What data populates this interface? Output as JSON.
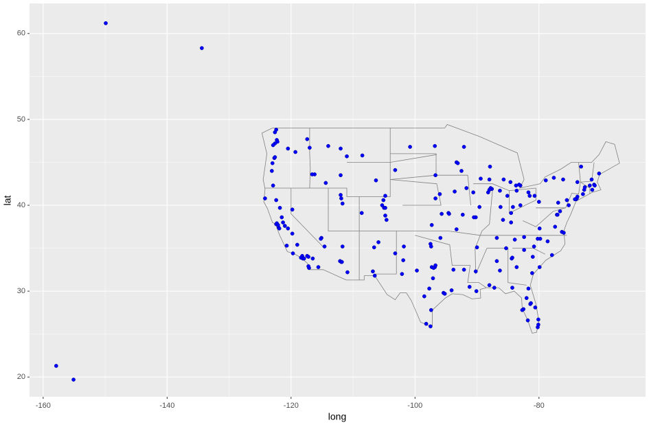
{
  "chart_data": {
    "type": "scatter",
    "x_label": "long",
    "y_label": "lat",
    "color": "#0000ff",
    "grid": true,
    "xlim": [
      -162.2,
      -62.8
    ],
    "ylim": [
      17.7,
      63.5
    ],
    "xticks": [
      -160,
      -140,
      -120,
      -100,
      -80
    ],
    "yticks": [
      20,
      30,
      40,
      50,
      60
    ],
    "x": [
      -149.9,
      -134.4,
      -157.9,
      -155.1,
      -122.3,
      -122.2,
      -122.6,
      -122.4,
      -122.6,
      -122.9,
      -122.7,
      -122.6,
      -123.0,
      -123.1,
      -122.9,
      -117.4,
      -117.0,
      -119.3,
      -120.5,
      -116.2,
      -116.6,
      -112.0,
      -114.4,
      -111.9,
      -111.7,
      -112.0,
      -119.8,
      -115.1,
      -115.2,
      -114.6,
      -122.4,
      -122.3,
      -122.0,
      -121.9,
      -122.1,
      -121.5,
      -121.3,
      -121.0,
      -120.5,
      -119.8,
      -119.0,
      -120.7,
      -119.7,
      -118.2,
      -118.4,
      -118.1,
      -117.9,
      -117.4,
      -117.2,
      -117.1,
      -117.2,
      -116.5,
      -115.6,
      -124.2,
      -122.4,
      -121.8,
      -112.1,
      -111.9,
      -111.8,
      -110.9,
      -111.7,
      -106.6,
      -106.5,
      -106.8,
      -105.9,
      -103.2,
      -105.0,
      -104.8,
      -105.3,
      -105.1,
      -104.8,
      -104.6,
      -108.6,
      -104.8,
      -106.3,
      -108.5,
      -111.0,
      -112.0,
      -114.0,
      -96.8,
      -100.8,
      -96.7,
      -103.2,
      -96.0,
      -96.7,
      -97.3,
      -95.7,
      -94.6,
      -94.5,
      -96.8,
      -97.3,
      -97.0,
      -96.7,
      -97.7,
      -98.5,
      -95.4,
      -95.2,
      -94.1,
      -97.4,
      -97.5,
      -98.2,
      -101.8,
      -101.9,
      -102.1,
      -99.7,
      -97.1,
      -97.5,
      -95.9,
      -97.4,
      -93.3,
      -93.1,
      -92.1,
      -92.5,
      -93.6,
      -91.7,
      -90.6,
      -87.6,
      -87.8,
      -88.0,
      -88.2,
      -89.6,
      -89.4,
      -88.0,
      -87.9,
      -90.2,
      -90.5,
      -93.3,
      -92.3,
      -83.0,
      -83.2,
      -83.7,
      -85.7,
      -84.6,
      -86.2,
      -85.1,
      -86.3,
      -84.5,
      -83.0,
      -81.7,
      -81.5,
      -80.7,
      -84.2,
      -83.6,
      -85.8,
      -84.5,
      -86.8,
      -90.0,
      -85.3,
      -83.9,
      -82.4,
      -86.8,
      -86.3,
      -88.0,
      -90.1,
      -91.2,
      -93.8,
      -92.1,
      -90.2,
      -84.4,
      -84.3,
      -83.6,
      -81.1,
      -84.3,
      -81.7,
      -82.5,
      -82.7,
      -81.4,
      -81.3,
      -80.2,
      -80.1,
      -80.1,
      -81.8,
      -82.0,
      -80.6,
      -87.2,
      -80.8,
      -78.6,
      -79.8,
      -80.2,
      -77.9,
      -81.0,
      -79.9,
      -82.4,
      -77.4,
      -76.3,
      -76.0,
      -79.9,
      -77.1,
      -77.0,
      -76.6,
      -75.2,
      -74.0,
      -73.9,
      -74.2,
      -73.8,
      -72.9,
      -72.7,
      -71.4,
      -71.1,
      -71.0,
      -71.8,
      -72.6,
      -73.8,
      -76.1,
      -77.6,
      -78.9,
      -80.0,
      -76.9,
      -75.5,
      -70.3,
      -73.2,
      -71.5
    ],
    "values": [
      61.2,
      58.3,
      21.3,
      19.7,
      47.6,
      47.4,
      47.2,
      48.8,
      48.5,
      47.0,
      45.5,
      45.6,
      44.9,
      44.0,
      42.3,
      47.7,
      46.7,
      46.2,
      46.6,
      43.6,
      43.6,
      43.5,
      42.6,
      40.8,
      40.2,
      41.2,
      39.5,
      36.2,
      36.1,
      35.2,
      37.8,
      37.9,
      37.4,
      37.3,
      37.7,
      38.6,
      38.0,
      37.6,
      37.3,
      36.7,
      35.4,
      35.3,
      34.4,
      34.1,
      33.9,
      33.8,
      33.8,
      34.1,
      34.0,
      32.7,
      32.9,
      33.8,
      32.8,
      40.8,
      40.6,
      39.7,
      33.5,
      33.4,
      33.4,
      32.2,
      35.2,
      35.1,
      31.8,
      32.3,
      35.7,
      34.4,
      39.7,
      39.7,
      40.0,
      40.6,
      38.8,
      38.3,
      39.1,
      41.1,
      42.9,
      45.8,
      45.7,
      46.6,
      46.9,
      46.9,
      46.8,
      43.5,
      44.1,
      41.3,
      40.8,
      37.7,
      39.0,
      39.1,
      39.0,
      32.8,
      32.8,
      32.7,
      33.0,
      30.3,
      29.4,
      29.8,
      29.7,
      30.1,
      27.8,
      25.9,
      26.2,
      35.2,
      33.6,
      32.0,
      32.4,
      31.5,
      35.5,
      36.2,
      35.2,
      45.0,
      44.9,
      46.8,
      44.0,
      41.6,
      42.0,
      41.5,
      41.9,
      42.0,
      41.8,
      41.5,
      39.8,
      43.1,
      43.0,
      44.5,
      38.6,
      38.6,
      37.2,
      38.9,
      42.3,
      42.4,
      42.3,
      43.0,
      42.7,
      39.8,
      41.1,
      41.7,
      39.1,
      40.0,
      41.5,
      41.1,
      41.1,
      39.8,
      41.7,
      38.3,
      38.0,
      36.2,
      35.1,
      35.0,
      36.0,
      36.3,
      33.5,
      32.4,
      30.7,
      30.0,
      30.5,
      32.5,
      32.5,
      32.3,
      33.8,
      33.9,
      32.8,
      32.1,
      30.4,
      30.3,
      27.9,
      27.8,
      28.5,
      28.6,
      25.8,
      26.1,
      26.7,
      26.6,
      29.2,
      28.1,
      30.4,
      35.2,
      35.8,
      36.1,
      36.1,
      34.2,
      34.0,
      32.8,
      34.8,
      37.5,
      36.9,
      36.8,
      37.3,
      38.9,
      38.9,
      39.3,
      40.0,
      40.7,
      40.8,
      40.7,
      41.0,
      41.3,
      41.8,
      41.8,
      42.4,
      42.3,
      42.3,
      42.1,
      42.7,
      43.0,
      43.2,
      42.9,
      40.4,
      40.3,
      40.6,
      43.7,
      44.5,
      43.0
    ]
  }
}
